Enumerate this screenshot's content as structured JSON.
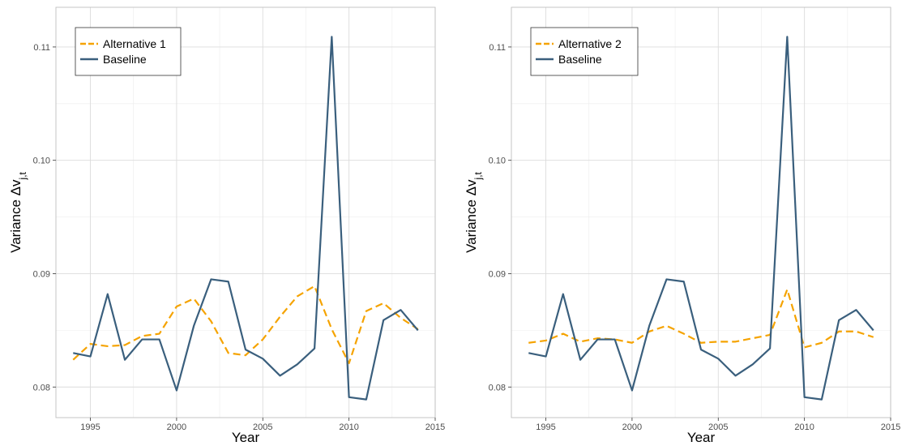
{
  "chart_data": [
    {
      "type": "line",
      "xlabel": "Year",
      "ylabel": "Variance Δv",
      "ylabel_sub": "j,t",
      "xlim": [
        1993,
        2015
      ],
      "ylim": [
        0.0773,
        0.1135
      ],
      "x_ticks": [
        1995,
        2000,
        2005,
        2010,
        2015
      ],
      "y_ticks": [
        0.08,
        0.09,
        0.1,
        0.11
      ],
      "x_tick_labels": [
        "1995",
        "2000",
        "2005",
        "2010",
        "2015"
      ],
      "y_tick_labels": [
        "0.08",
        "0.09",
        "0.10",
        "0.11"
      ],
      "grid": true,
      "legend_position": "top-left",
      "x": [
        1994,
        1995,
        1996,
        1997,
        1998,
        1999,
        2000,
        2001,
        2002,
        2003,
        2004,
        2005,
        2006,
        2007,
        2008,
        2009,
        2010,
        2011,
        2012,
        2013,
        2014
      ],
      "series": [
        {
          "name": "Alternative 1",
          "color": "#f5a300",
          "style": "dashed",
          "values": [
            0.0824,
            0.0838,
            0.0836,
            0.0837,
            0.0845,
            0.0847,
            0.0871,
            0.0878,
            0.0858,
            0.083,
            0.0828,
            0.0842,
            0.0862,
            0.088,
            0.0889,
            0.0851,
            0.0821,
            0.0867,
            0.0874,
            0.0861,
            0.0851
          ]
        },
        {
          "name": "Baseline",
          "color": "#3a5f7d",
          "style": "solid",
          "values": [
            0.083,
            0.0827,
            0.0882,
            0.0824,
            0.0842,
            0.0842,
            0.0797,
            0.0854,
            0.0895,
            0.0893,
            0.0833,
            0.0825,
            0.081,
            0.082,
            0.0834,
            0.1109,
            0.0791,
            0.0789,
            0.0859,
            0.0868,
            0.085
          ]
        }
      ]
    },
    {
      "type": "line",
      "xlabel": "Year",
      "ylabel": "Variance Δv",
      "ylabel_sub": "j,t",
      "xlim": [
        1993,
        2015
      ],
      "ylim": [
        0.0773,
        0.1135
      ],
      "x_ticks": [
        1995,
        2000,
        2005,
        2010,
        2015
      ],
      "y_ticks": [
        0.08,
        0.09,
        0.1,
        0.11
      ],
      "x_tick_labels": [
        "1995",
        "2000",
        "2005",
        "2010",
        "2015"
      ],
      "y_tick_labels": [
        "0.08",
        "0.09",
        "0.10",
        "0.11"
      ],
      "grid": true,
      "legend_position": "top-left",
      "x": [
        1994,
        1995,
        1996,
        1997,
        1998,
        1999,
        2000,
        2001,
        2002,
        2003,
        2004,
        2005,
        2006,
        2007,
        2008,
        2009,
        2010,
        2011,
        2012,
        2013,
        2014
      ],
      "series": [
        {
          "name": "Alternative 2",
          "color": "#f5a300",
          "style": "dashed",
          "values": [
            0.0839,
            0.0841,
            0.0847,
            0.084,
            0.0843,
            0.0842,
            0.0839,
            0.0849,
            0.0854,
            0.0847,
            0.0839,
            0.084,
            0.084,
            0.0843,
            0.0846,
            0.0886,
            0.0835,
            0.0839,
            0.0849,
            0.0849,
            0.0844
          ]
        },
        {
          "name": "Baseline",
          "color": "#3a5f7d",
          "style": "solid",
          "values": [
            0.083,
            0.0827,
            0.0882,
            0.0824,
            0.0842,
            0.0842,
            0.0797,
            0.0854,
            0.0895,
            0.0893,
            0.0833,
            0.0825,
            0.081,
            0.082,
            0.0834,
            0.1109,
            0.0791,
            0.0789,
            0.0859,
            0.0868,
            0.085
          ]
        }
      ]
    }
  ]
}
